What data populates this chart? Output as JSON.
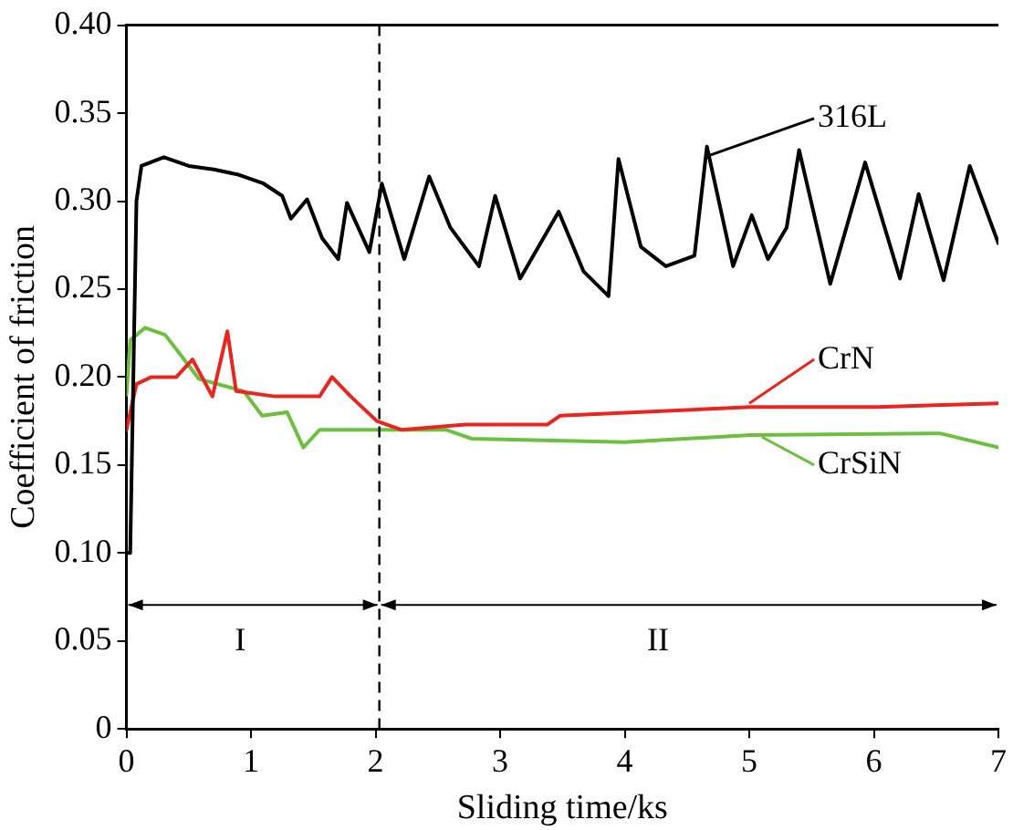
{
  "chart_data": {
    "type": "line",
    "xlabel": "Sliding time/ks",
    "ylabel": "Coefficient of friction",
    "xlim": [
      0,
      7
    ],
    "xticks": [
      0,
      1,
      2,
      3,
      4,
      5,
      6,
      7
    ],
    "ylim": [
      0,
      0.4
    ],
    "yticks": [
      0,
      {
        "value": 0.05,
        "label": "0.05"
      },
      {
        "value": 0.1,
        "label": "0.10"
      },
      {
        "value": 0.15,
        "label": "0.15"
      },
      {
        "value": 0.2,
        "label": "0.20"
      },
      {
        "value": 0.25,
        "label": "0.25"
      },
      {
        "value": 0.3,
        "label": "0.30"
      },
      {
        "value": 0.35,
        "label": "0.35"
      },
      {
        "value": 0.4,
        "label": "0.40"
      }
    ],
    "grid": false,
    "legend": "right",
    "marker": "none",
    "line_style": "solid",
    "series": [
      {
        "name": "316L",
        "color": "#000000",
        "x": [
          0,
          0.03,
          0.08,
          0.12,
          0.3,
          0.5,
          0.7,
          0.9,
          1.1,
          1.25,
          1.32,
          1.45,
          1.57,
          1.7,
          1.77,
          1.95,
          2.05,
          2.23,
          2.43,
          2.6,
          2.83,
          2.96,
          3.16,
          3.47,
          3.67,
          3.87,
          3.95,
          4.13,
          4.33,
          4.56,
          4.66,
          4.87,
          5.02,
          5.15,
          5.3,
          5.4,
          5.65,
          5.93,
          6.21,
          6.36,
          6.56,
          6.77,
          7.0
        ],
        "values": [
          0.1,
          0.1,
          0.3,
          0.32,
          0.325,
          0.32,
          0.318,
          0.315,
          0.31,
          0.303,
          0.29,
          0.301,
          0.279,
          0.267,
          0.299,
          0.271,
          0.31,
          0.267,
          0.314,
          0.285,
          0.263,
          0.303,
          0.256,
          0.294,
          0.26,
          0.246,
          0.324,
          0.274,
          0.263,
          0.269,
          0.331,
          0.263,
          0.292,
          0.267,
          0.285,
          0.329,
          0.253,
          0.322,
          0.256,
          0.304,
          0.255,
          0.32,
          0.276
        ]
      },
      {
        "name": "CrN",
        "color": "#e8261f",
        "x": [
          0,
          0.08,
          0.2,
          0.4,
          0.53,
          0.69,
          0.81,
          0.88,
          1.19,
          1.55,
          1.65,
          1.8,
          2.01,
          2.21,
          2.72,
          3.38,
          3.48,
          5.01,
          6.03,
          7.0
        ],
        "values": [
          0.17,
          0.196,
          0.2,
          0.2,
          0.21,
          0.189,
          0.226,
          0.192,
          0.189,
          0.189,
          0.2,
          0.189,
          0.175,
          0.17,
          0.173,
          0.173,
          0.178,
          0.183,
          0.183,
          0.185
        ]
      },
      {
        "name": "CrSiN",
        "color": "#6cbf3f",
        "x": [
          0,
          0.03,
          0.15,
          0.31,
          0.43,
          0.58,
          0.94,
          1.09,
          1.29,
          1.42,
          1.55,
          2.01,
          2.57,
          2.77,
          4.0,
          5.01,
          6.53,
          7.0
        ],
        "values": [
          0.19,
          0.221,
          0.228,
          0.224,
          0.213,
          0.199,
          0.192,
          0.178,
          0.18,
          0.16,
          0.17,
          0.17,
          0.17,
          0.165,
          0.163,
          0.167,
          0.168,
          0.16
        ]
      }
    ],
    "ref_lines": [
      {
        "axis": "x",
        "value": 2.03,
        "line_style": "dashed",
        "color": "#000000"
      }
    ],
    "annotations": [
      "I",
      "II"
    ]
  }
}
